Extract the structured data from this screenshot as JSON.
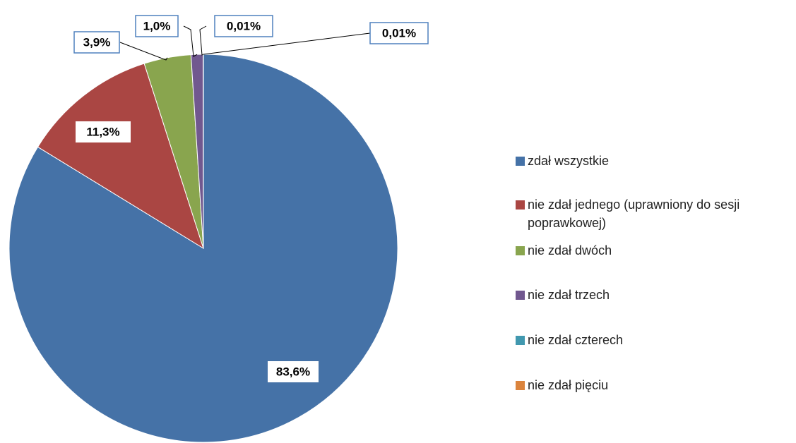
{
  "chart_data": {
    "type": "pie",
    "categories": [
      "zdał wszystkie",
      "nie zdał jednego (uprawniony do sesji poprawkowej)",
      "nie zdał dwóch",
      "nie zdał trzech",
      "nie zdał czterech",
      "nie zdał pięciu"
    ],
    "values": [
      83.6,
      11.3,
      3.9,
      1.0,
      0.01,
      0.01
    ],
    "value_labels": [
      "83,6%",
      "11,3%",
      "3,9%",
      "1,0%",
      "0,01%",
      "0,01%"
    ],
    "colors": [
      "#4572a7",
      "#aa4643",
      "#89a54e",
      "#71588f",
      "#4198af",
      "#db843d"
    ],
    "legend": "right"
  }
}
